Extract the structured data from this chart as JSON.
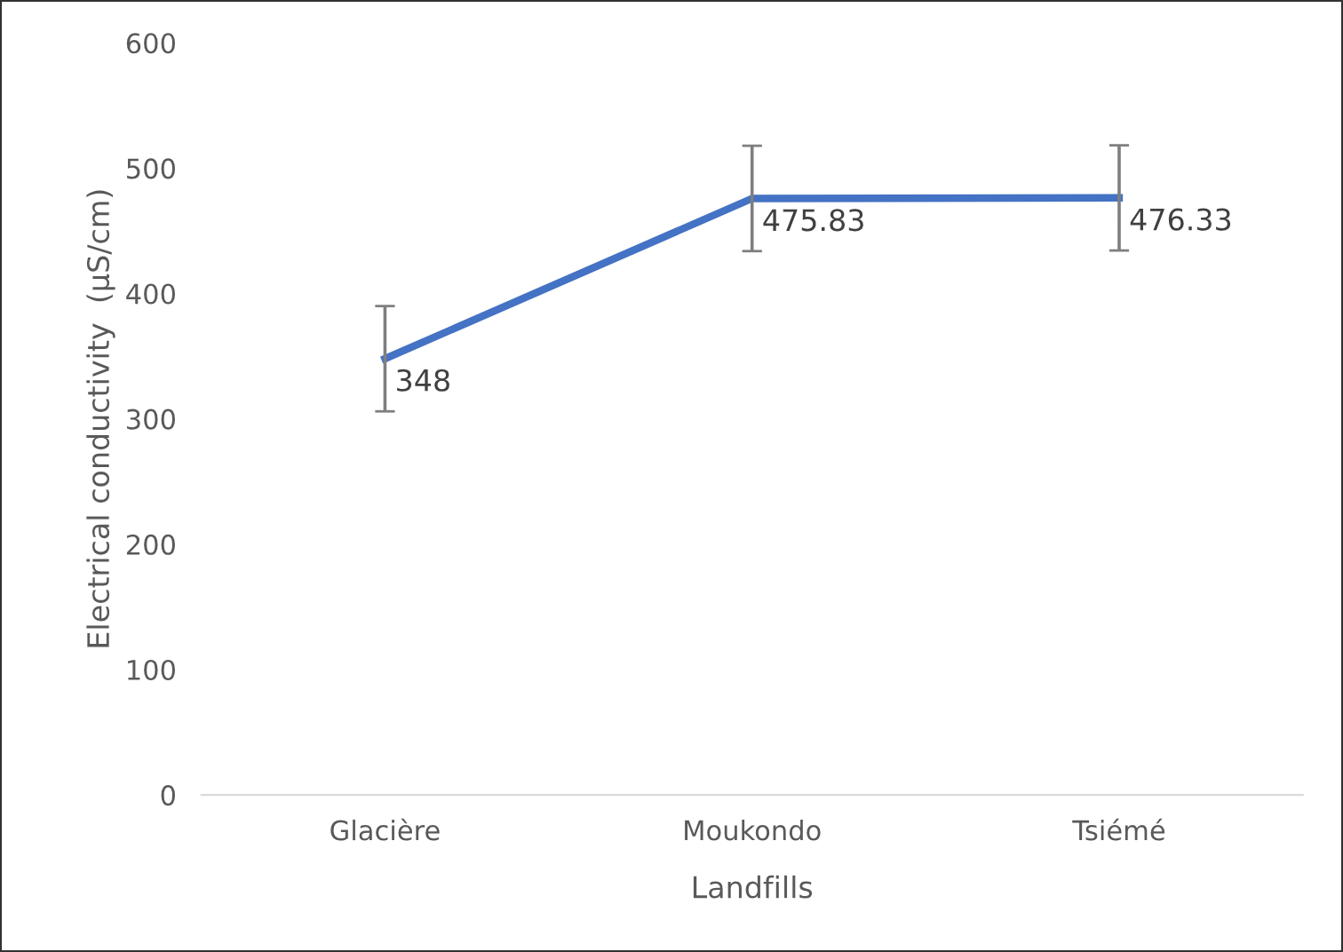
{
  "chart_data": {
    "type": "line",
    "xlabel": "Landfills",
    "ylabel": "Electrical conductivity  (µS/cm)",
    "categories": [
      "Glacière",
      "Moukondo",
      "Tsiémé"
    ],
    "series": [
      {
        "color": "#4472c4",
        "values": [
          348,
          475.83,
          476.33
        ],
        "errors": [
          42,
          42,
          42
        ]
      }
    ],
    "ylim": [
      0,
      600
    ],
    "yticks": [
      0,
      100,
      200,
      300,
      400,
      500,
      600
    ],
    "grid": false,
    "legend": false,
    "marker": "none",
    "line_style": "solid",
    "data_labels": true
  }
}
